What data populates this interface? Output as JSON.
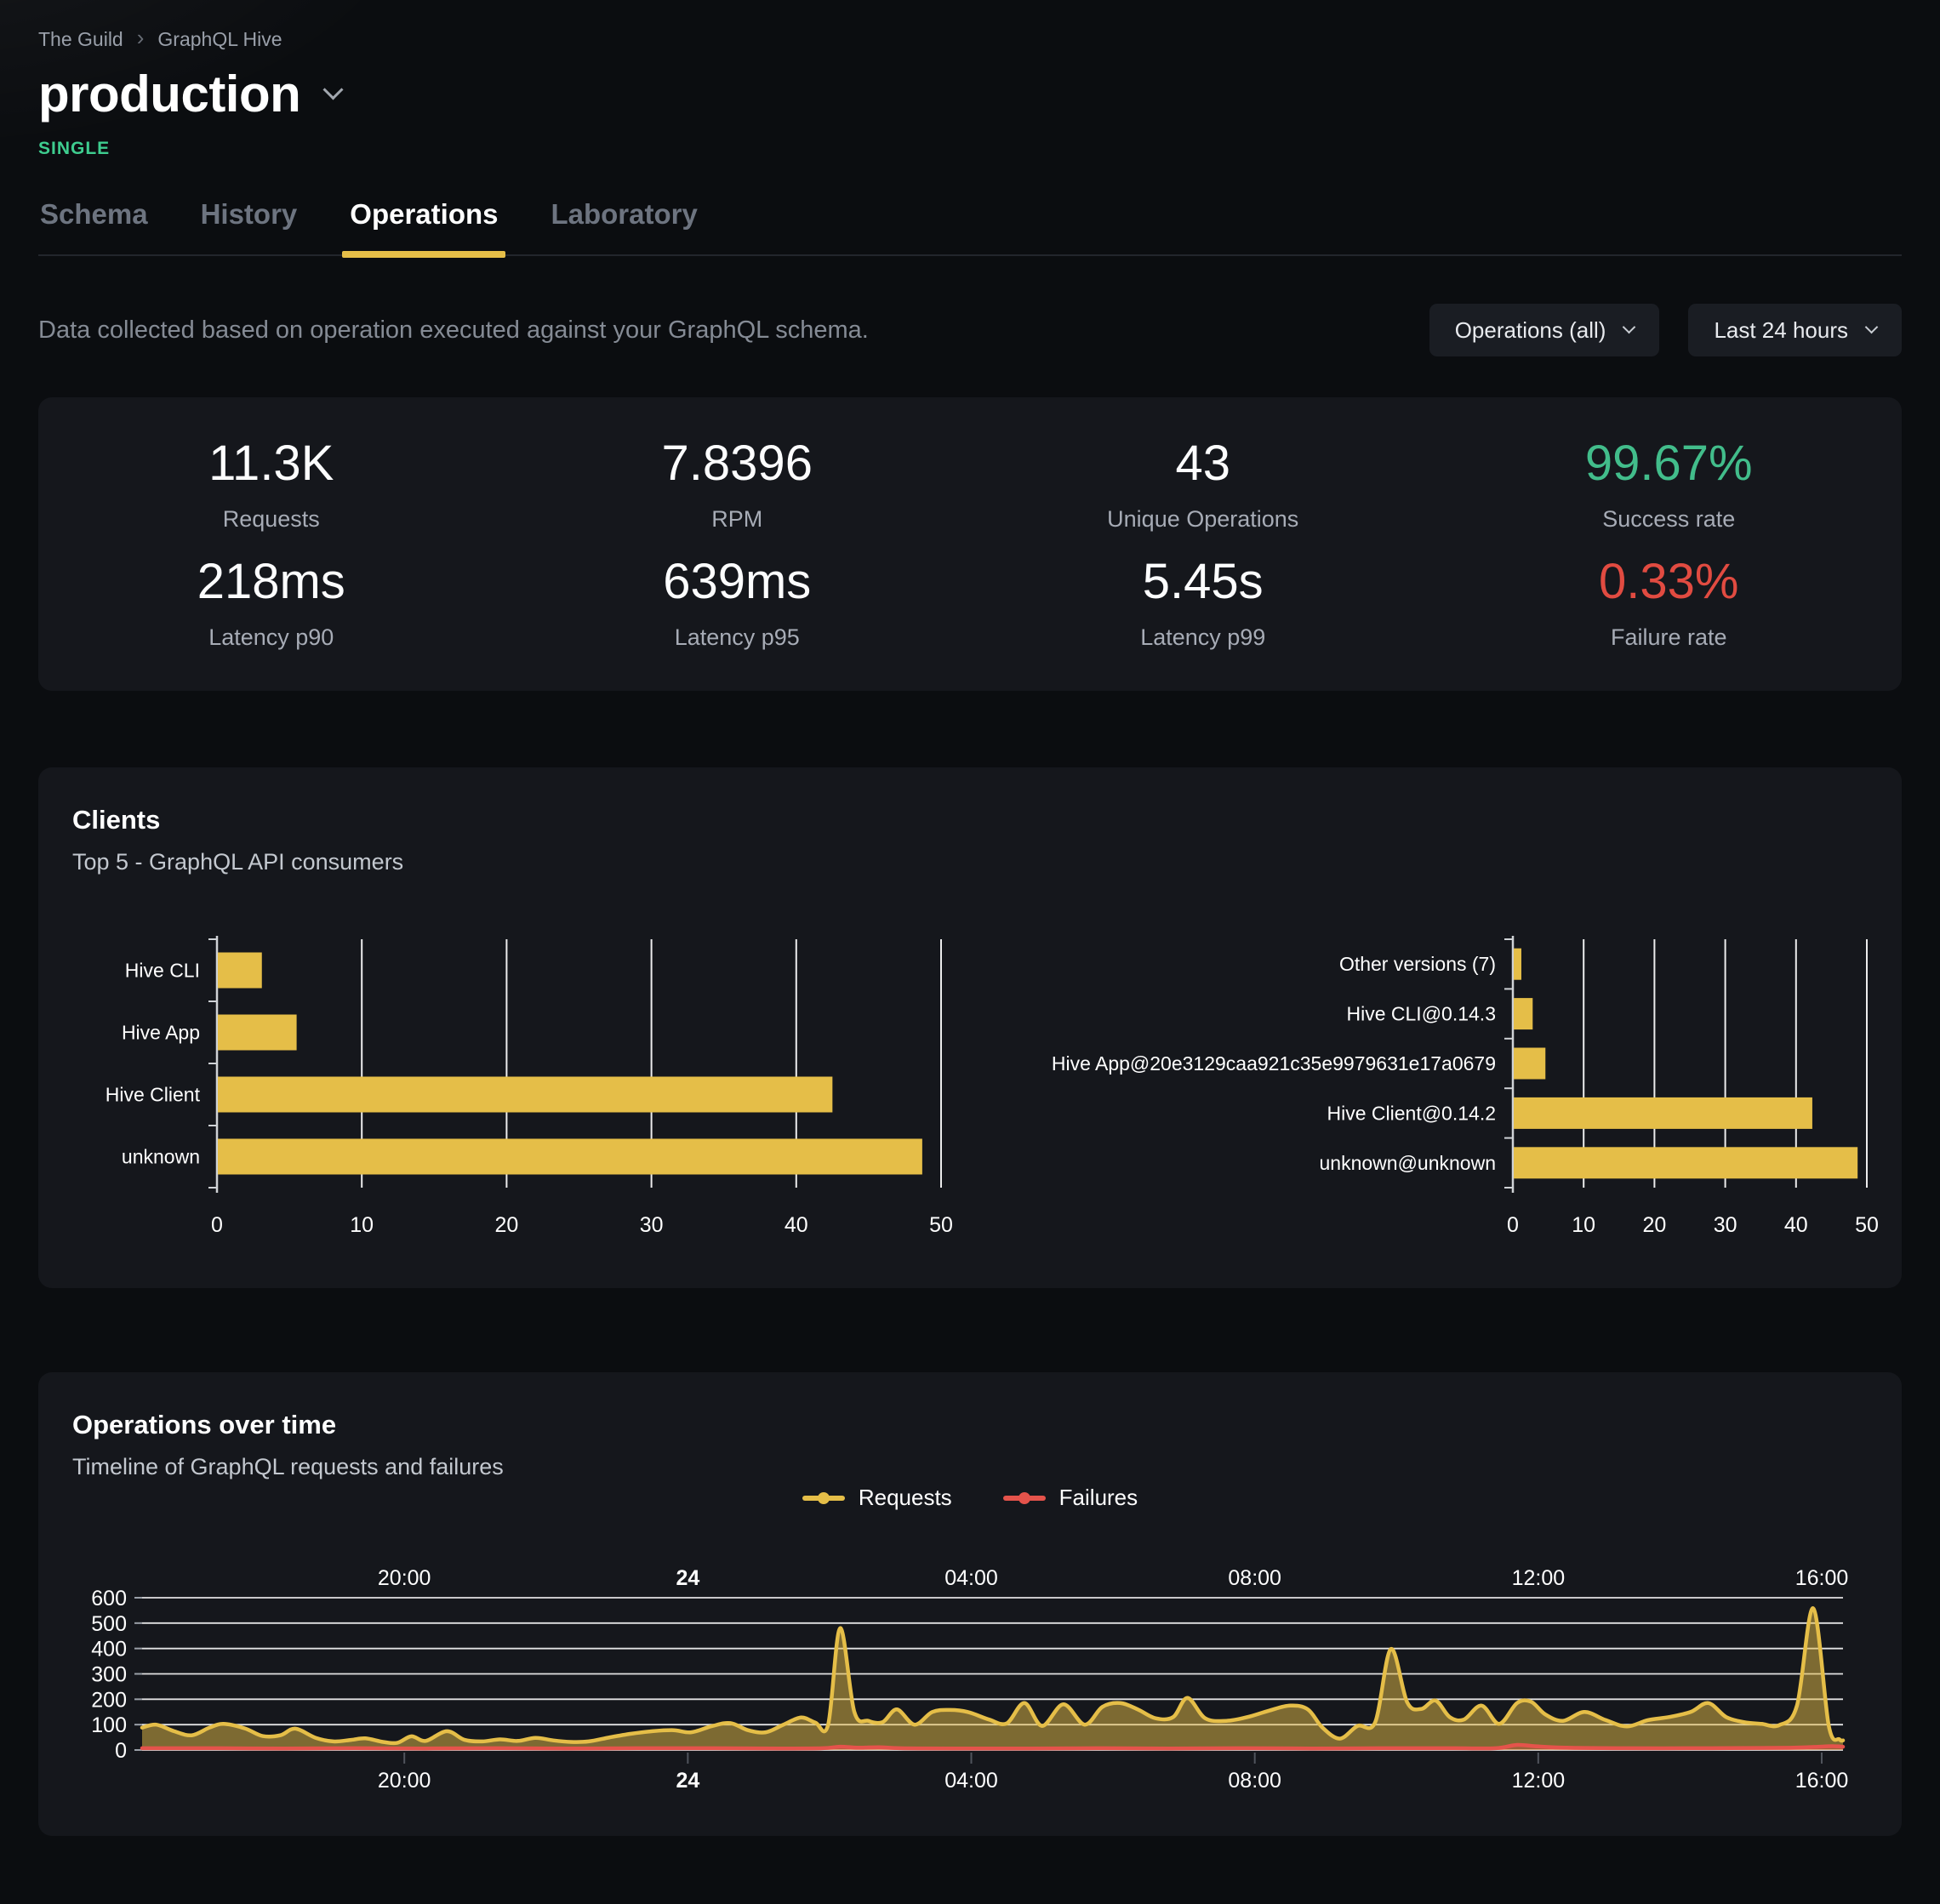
{
  "page": {
    "breadcrumb": [
      "The Guild",
      "GraphQL Hive"
    ],
    "title": "production",
    "badge": "SINGLE",
    "tabs": [
      {
        "label": "Schema",
        "active": false
      },
      {
        "label": "History",
        "active": false
      },
      {
        "label": "Operations",
        "active": true
      },
      {
        "label": "Laboratory",
        "active": false
      }
    ],
    "description": "Data collected based on operation executed against your GraphQL schema.",
    "filters": [
      {
        "label": "Operations (all)"
      },
      {
        "label": "Last 24 hours"
      }
    ]
  },
  "stats": [
    {
      "value": "11.3K",
      "label": "Requests",
      "color": "white"
    },
    {
      "value": "7.8396",
      "label": "RPM",
      "color": "white"
    },
    {
      "value": "43",
      "label": "Unique Operations",
      "color": "white"
    },
    {
      "value": "99.67%",
      "label": "Success rate",
      "color": "green"
    },
    {
      "value": "218ms",
      "label": "Latency p90",
      "color": "white"
    },
    {
      "value": "639ms",
      "label": "Latency p95",
      "color": "white"
    },
    {
      "value": "5.45s",
      "label": "Latency p99",
      "color": "white"
    },
    {
      "value": "0.33%",
      "label": "Failure rate",
      "color": "red"
    }
  ],
  "clients_card": {
    "title": "Clients",
    "subtitle": "Top 5 - GraphQL API consumers"
  },
  "timeline_card": {
    "title": "Operations over time",
    "subtitle": "Timeline of GraphQL requests and failures"
  },
  "colors": {
    "yellow": "#e5be48",
    "red": "#e5534b",
    "green": "#42bd8b",
    "card": "#15171c",
    "page": "#0b0d10"
  },
  "chart_data": [
    {
      "id": "clients_by_name",
      "type": "bar",
      "orientation": "horizontal",
      "title": "Top 5 clients by name",
      "categories": [
        "Hive CLI",
        "Hive App",
        "Hive Client",
        "unknown"
      ],
      "values": [
        3.1,
        5.5,
        42.5,
        48.7
      ],
      "xlim": [
        0,
        50
      ],
      "xticks": [
        0,
        10,
        20,
        30,
        40,
        50
      ],
      "grid": true,
      "bar_color": "#e5be48"
    },
    {
      "id": "clients_by_version",
      "type": "bar",
      "orientation": "horizontal",
      "title": "Top 5 clients by version",
      "categories": [
        "Other versions (7)",
        "Hive CLI@0.14.3",
        "Hive App@20e3129caa921c35e9979631e17a0679",
        "Hive Client@0.14.2",
        "unknown@unknown"
      ],
      "values": [
        1.2,
        2.8,
        4.6,
        42.3,
        48.7
      ],
      "xlim": [
        0,
        50
      ],
      "xticks": [
        0,
        10,
        20,
        30,
        40,
        50
      ],
      "grid": true,
      "bar_color": "#e5be48"
    },
    {
      "id": "operations_over_time",
      "type": "area",
      "xlim": [
        0,
        24
      ],
      "ylim": [
        0,
        600
      ],
      "yticks": [
        0,
        100,
        200,
        300,
        400,
        500,
        600
      ],
      "grid": true,
      "legend_position": "top-center",
      "x_axis_labels": [
        {
          "t": 3.7,
          "label": "20:00",
          "bold": false
        },
        {
          "t": 7.7,
          "label": "24",
          "bold": true
        },
        {
          "t": 11.7,
          "label": "04:00",
          "bold": false
        },
        {
          "t": 15.7,
          "label": "08:00",
          "bold": false
        },
        {
          "t": 19.7,
          "label": "12:00",
          "bold": false
        },
        {
          "t": 23.7,
          "label": "16:00",
          "bold": false
        }
      ],
      "series": [
        {
          "name": "Requests",
          "color": "#e5be48",
          "points": [
            [
              0,
              88
            ],
            [
              0.2,
              100
            ],
            [
              0.45,
              74
            ],
            [
              0.7,
              58
            ],
            [
              0.95,
              88
            ],
            [
              1.15,
              103
            ],
            [
              1.45,
              85
            ],
            [
              1.7,
              55
            ],
            [
              1.95,
              58
            ],
            [
              2.16,
              84
            ],
            [
              2.45,
              48
            ],
            [
              2.7,
              34
            ],
            [
              2.95,
              40
            ],
            [
              3.15,
              46
            ],
            [
              3.4,
              32
            ],
            [
              3.6,
              28
            ],
            [
              3.8,
              54
            ],
            [
              4,
              36
            ],
            [
              4.3,
              74
            ],
            [
              4.55,
              40
            ],
            [
              4.8,
              34
            ],
            [
              5.05,
              42
            ],
            [
              5.3,
              36
            ],
            [
              5.55,
              48
            ],
            [
              5.8,
              38
            ],
            [
              6.05,
              32
            ],
            [
              6.3,
              34
            ],
            [
              6.6,
              50
            ],
            [
              6.9,
              64
            ],
            [
              7.2,
              74
            ],
            [
              7.5,
              78
            ],
            [
              7.75,
              70
            ],
            [
              8.05,
              95
            ],
            [
              8.3,
              106
            ],
            [
              8.55,
              78
            ],
            [
              8.8,
              70
            ],
            [
              9.05,
              100
            ],
            [
              9.3,
              128
            ],
            [
              9.5,
              108
            ],
            [
              9.68,
              100
            ],
            [
              9.85,
              480
            ],
            [
              10.05,
              150
            ],
            [
              10.25,
              115
            ],
            [
              10.45,
              110
            ],
            [
              10.65,
              160
            ],
            [
              10.9,
              100
            ],
            [
              11.15,
              150
            ],
            [
              11.4,
              158
            ],
            [
              11.65,
              150
            ],
            [
              11.95,
              120
            ],
            [
              12.2,
              105
            ],
            [
              12.45,
              185
            ],
            [
              12.7,
              95
            ],
            [
              13,
              180
            ],
            [
              13.3,
              100
            ],
            [
              13.55,
              170
            ],
            [
              13.8,
              185
            ],
            [
              14.05,
              160
            ],
            [
              14.3,
              125
            ],
            [
              14.55,
              130
            ],
            [
              14.75,
              205
            ],
            [
              15,
              125
            ],
            [
              15.3,
              115
            ],
            [
              15.6,
              130
            ],
            [
              15.9,
              155
            ],
            [
              16.2,
              175
            ],
            [
              16.45,
              160
            ],
            [
              16.65,
              90
            ],
            [
              16.9,
              45
            ],
            [
              17.15,
              95
            ],
            [
              17.4,
              110
            ],
            [
              17.62,
              398
            ],
            [
              17.85,
              188
            ],
            [
              18.05,
              162
            ],
            [
              18.25,
              195
            ],
            [
              18.45,
              130
            ],
            [
              18.65,
              120
            ],
            [
              18.9,
              175
            ],
            [
              19.15,
              103
            ],
            [
              19.4,
              185
            ],
            [
              19.6,
              190
            ],
            [
              19.8,
              140
            ],
            [
              20.05,
              115
            ],
            [
              20.35,
              150
            ],
            [
              20.65,
              118
            ],
            [
              20.95,
              93
            ],
            [
              21.25,
              118
            ],
            [
              21.55,
              130
            ],
            [
              21.85,
              150
            ],
            [
              22.1,
              185
            ],
            [
              22.35,
              130
            ],
            [
              22.6,
              110
            ],
            [
              22.85,
              103
            ],
            [
              23.1,
              98
            ],
            [
              23.35,
              175
            ],
            [
              23.58,
              558
            ],
            [
              23.8,
              95
            ],
            [
              23.95,
              42
            ],
            [
              24,
              38
            ]
          ]
        },
        {
          "name": "Failures",
          "color": "#e5534b",
          "points": [
            [
              0,
              7
            ],
            [
              1,
              7
            ],
            [
              2,
              6
            ],
            [
              3,
              7
            ],
            [
              4,
              6
            ],
            [
              5,
              7
            ],
            [
              6,
              6
            ],
            [
              7,
              7
            ],
            [
              8,
              7
            ],
            [
              9,
              6
            ],
            [
              9.6,
              7
            ],
            [
              9.85,
              13
            ],
            [
              10.1,
              9
            ],
            [
              10.4,
              11
            ],
            [
              10.7,
              7
            ],
            [
              11.5,
              6
            ],
            [
              12.5,
              6
            ],
            [
              13.5,
              7
            ],
            [
              14.5,
              6
            ],
            [
              15.5,
              7
            ],
            [
              16.5,
              6
            ],
            [
              17.5,
              7
            ],
            [
              18.5,
              7
            ],
            [
              19.1,
              7
            ],
            [
              19.4,
              20
            ],
            [
              19.7,
              14
            ],
            [
              20.1,
              9
            ],
            [
              20.8,
              7
            ],
            [
              21.8,
              7
            ],
            [
              22.8,
              8
            ],
            [
              23.3,
              9
            ],
            [
              23.6,
              12
            ],
            [
              23.85,
              15
            ],
            [
              24,
              13
            ]
          ]
        }
      ]
    }
  ]
}
